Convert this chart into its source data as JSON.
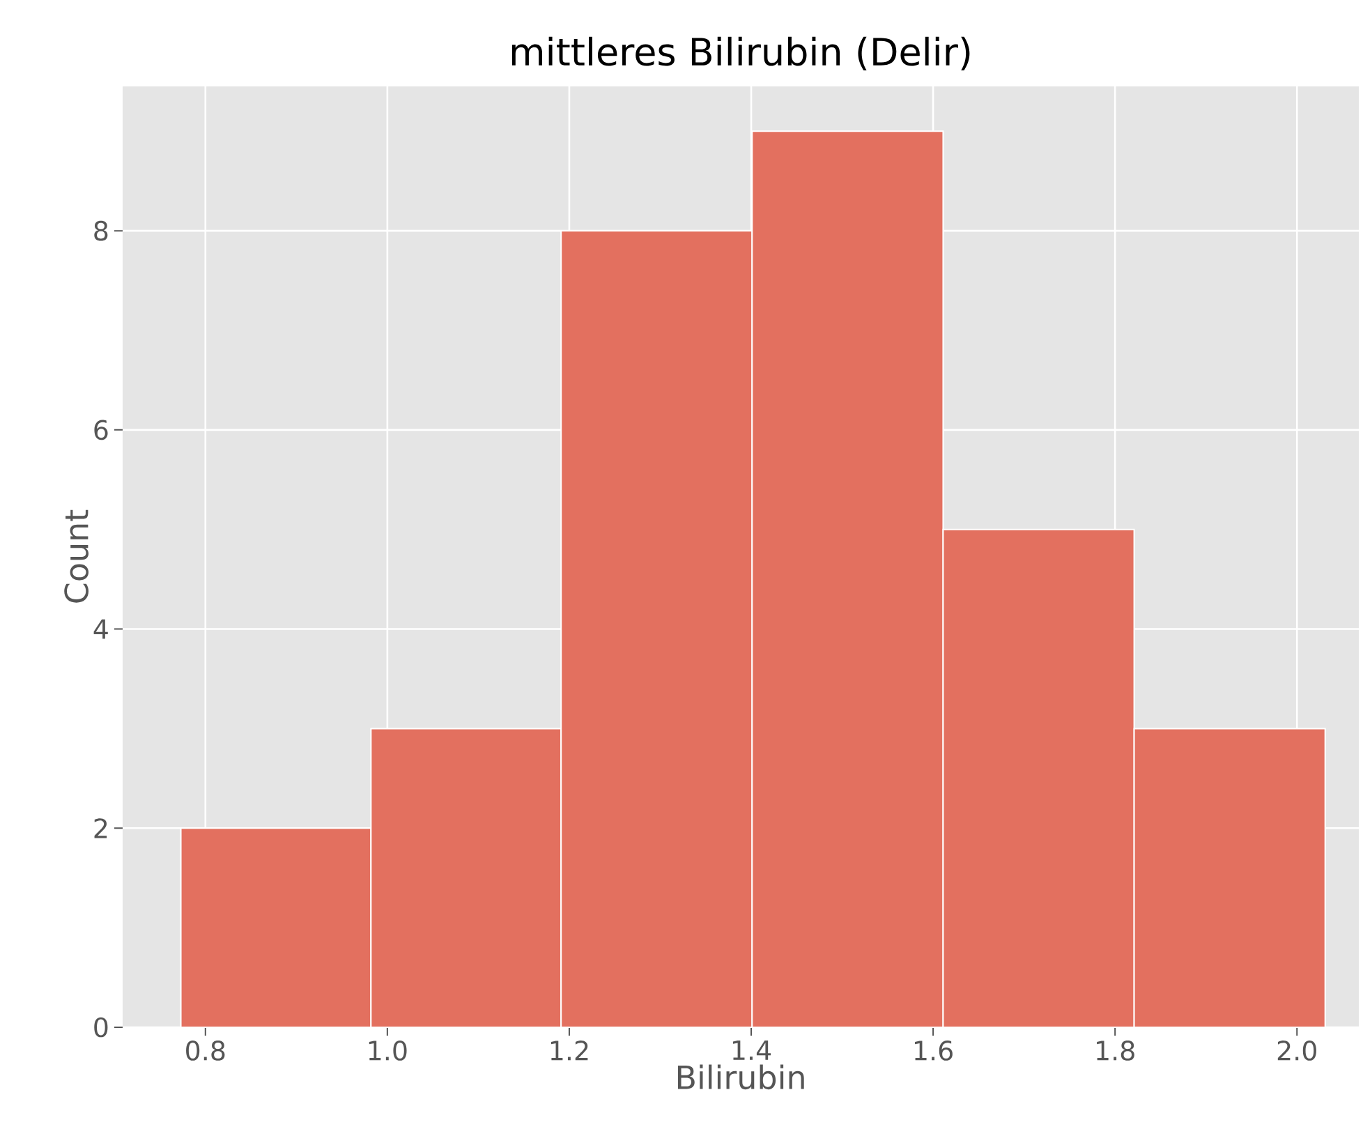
{
  "chart_data": {
    "type": "histogram",
    "title": "mittleres Bilirubin (Delir)",
    "xlabel": "Bilirubin",
    "ylabel": "Count",
    "bins": [
      0.773,
      0.982,
      1.191,
      1.401,
      1.611,
      1.821,
      2.031
    ],
    "values": [
      2,
      3,
      8,
      9,
      5,
      3
    ],
    "color": "#e3705f",
    "xlim": [
      0.709,
      2.068
    ],
    "ylim": [
      0,
      9.45
    ],
    "xticks": [
      0.8,
      {
        "value": 1.0,
        "label": "1.0"
      },
      1.2,
      1.4,
      1.6,
      1.8,
      {
        "value": 2.0,
        "label": "2.0"
      }
    ],
    "yticks": [
      0,
      2,
      4,
      6,
      8
    ],
    "grid": true
  }
}
